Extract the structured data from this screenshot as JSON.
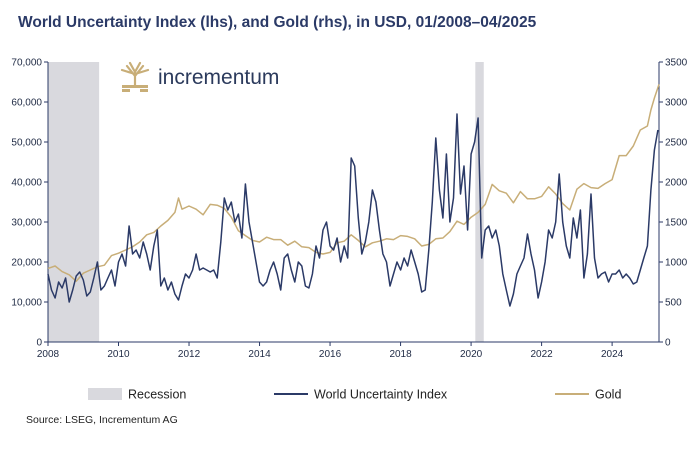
{
  "chart_data": {
    "type": "line",
    "title": "World Uncertainty Index (lhs), and Gold (rhs), in USD, 01/2008–04/2025",
    "x_range": [
      2008,
      2025.33
    ],
    "x_ticks": [
      "2008",
      "2010",
      "2012",
      "2014",
      "2016",
      "2018",
      "2020",
      "2022",
      "2024"
    ],
    "y_left": {
      "range": [
        0,
        70000
      ],
      "ticks": [
        "0",
        "10,000",
        "20,000",
        "30,000",
        "40,000",
        "50,000",
        "60,000",
        "70,000"
      ]
    },
    "y_right": {
      "range": [
        0,
        3500
      ],
      "ticks": [
        "0",
        "500",
        "1000",
        "1500",
        "2000",
        "2500",
        "3000",
        "3500"
      ]
    },
    "recessions": [
      {
        "start": 2008.0,
        "end": 2009.45
      },
      {
        "start": 2020.12,
        "end": 2020.36
      }
    ],
    "series": [
      {
        "name": "World Uncertainty Index",
        "axis": "left",
        "color": "#2b3a67",
        "points": [
          [
            2008.0,
            17000
          ],
          [
            2008.1,
            13000
          ],
          [
            2008.2,
            11000
          ],
          [
            2008.3,
            15000
          ],
          [
            2008.4,
            13500
          ],
          [
            2008.5,
            16000
          ],
          [
            2008.6,
            10000
          ],
          [
            2008.7,
            13000
          ],
          [
            2008.8,
            16500
          ],
          [
            2008.9,
            17500
          ],
          [
            2009.0,
            15500
          ],
          [
            2009.1,
            11500
          ],
          [
            2009.2,
            12500
          ],
          [
            2009.3,
            16000
          ],
          [
            2009.4,
            20000
          ],
          [
            2009.5,
            13000
          ],
          [
            2009.6,
            14000
          ],
          [
            2009.7,
            16000
          ],
          [
            2009.8,
            18000
          ],
          [
            2009.9,
            14000
          ],
          [
            2010.0,
            20000
          ],
          [
            2010.1,
            22000
          ],
          [
            2010.2,
            19000
          ],
          [
            2010.3,
            29000
          ],
          [
            2010.4,
            22000
          ],
          [
            2010.5,
            23000
          ],
          [
            2010.6,
            21000
          ],
          [
            2010.7,
            25000
          ],
          [
            2010.8,
            22000
          ],
          [
            2010.9,
            18000
          ],
          [
            2011.0,
            24000
          ],
          [
            2011.1,
            28000
          ],
          [
            2011.2,
            14000
          ],
          [
            2011.3,
            16000
          ],
          [
            2011.4,
            13000
          ],
          [
            2011.5,
            15000
          ],
          [
            2011.6,
            12000
          ],
          [
            2011.7,
            10500
          ],
          [
            2011.8,
            14000
          ],
          [
            2011.9,
            17000
          ],
          [
            2012.0,
            16000
          ],
          [
            2012.1,
            18000
          ],
          [
            2012.2,
            22000
          ],
          [
            2012.3,
            18000
          ],
          [
            2012.4,
            18500
          ],
          [
            2012.5,
            18000
          ],
          [
            2012.6,
            17500
          ],
          [
            2012.7,
            18000
          ],
          [
            2012.8,
            16000
          ],
          [
            2012.9,
            25000
          ],
          [
            2013.0,
            36000
          ],
          [
            2013.1,
            33000
          ],
          [
            2013.2,
            35000
          ],
          [
            2013.3,
            30000
          ],
          [
            2013.4,
            32000
          ],
          [
            2013.5,
            26000
          ],
          [
            2013.6,
            39500
          ],
          [
            2013.7,
            30000
          ],
          [
            2013.8,
            25000
          ],
          [
            2013.9,
            20000
          ],
          [
            2014.0,
            15000
          ],
          [
            2014.1,
            14000
          ],
          [
            2014.2,
            15000
          ],
          [
            2014.3,
            18000
          ],
          [
            2014.4,
            20000
          ],
          [
            2014.5,
            17000
          ],
          [
            2014.6,
            13000
          ],
          [
            2014.7,
            21000
          ],
          [
            2014.8,
            22000
          ],
          [
            2014.9,
            18000
          ],
          [
            2015.0,
            15000
          ],
          [
            2015.1,
            20000
          ],
          [
            2015.2,
            19000
          ],
          [
            2015.3,
            14000
          ],
          [
            2015.4,
            13500
          ],
          [
            2015.5,
            17000
          ],
          [
            2015.6,
            24000
          ],
          [
            2015.7,
            21000
          ],
          [
            2015.8,
            28000
          ],
          [
            2015.9,
            30000
          ],
          [
            2016.0,
            24000
          ],
          [
            2016.1,
            23000
          ],
          [
            2016.2,
            26000
          ],
          [
            2016.3,
            20000
          ],
          [
            2016.4,
            24000
          ],
          [
            2016.5,
            21000
          ],
          [
            2016.6,
            46000
          ],
          [
            2016.7,
            44000
          ],
          [
            2016.8,
            31000
          ],
          [
            2016.9,
            22000
          ],
          [
            2017.0,
            25000
          ],
          [
            2017.1,
            30000
          ],
          [
            2017.2,
            38000
          ],
          [
            2017.3,
            35000
          ],
          [
            2017.4,
            28000
          ],
          [
            2017.5,
            22000
          ],
          [
            2017.6,
            20000
          ],
          [
            2017.7,
            14000
          ],
          [
            2017.8,
            17000
          ],
          [
            2017.9,
            20000
          ],
          [
            2018.0,
            18000
          ],
          [
            2018.1,
            21000
          ],
          [
            2018.2,
            19000
          ],
          [
            2018.3,
            23000
          ],
          [
            2018.4,
            20000
          ],
          [
            2018.5,
            17000
          ],
          [
            2018.6,
            12500
          ],
          [
            2018.7,
            13000
          ],
          [
            2018.8,
            23000
          ],
          [
            2018.9,
            35000
          ],
          [
            2019.0,
            51000
          ],
          [
            2019.1,
            38000
          ],
          [
            2019.2,
            31000
          ],
          [
            2019.3,
            47000
          ],
          [
            2019.4,
            30000
          ],
          [
            2019.5,
            36000
          ],
          [
            2019.6,
            57000
          ],
          [
            2019.7,
            37000
          ],
          [
            2019.8,
            44000
          ],
          [
            2019.9,
            28000
          ],
          [
            2020.0,
            47000
          ],
          [
            2020.1,
            50000
          ],
          [
            2020.2,
            56000
          ],
          [
            2020.3,
            21000
          ],
          [
            2020.4,
            28000
          ],
          [
            2020.5,
            29000
          ],
          [
            2020.6,
            26000
          ],
          [
            2020.7,
            28000
          ],
          [
            2020.8,
            24000
          ],
          [
            2020.9,
            17000
          ],
          [
            2021.0,
            13000
          ],
          [
            2021.1,
            9000
          ],
          [
            2021.2,
            12000
          ],
          [
            2021.3,
            17000
          ],
          [
            2021.4,
            19000
          ],
          [
            2021.5,
            21000
          ],
          [
            2021.6,
            27000
          ],
          [
            2021.7,
            22000
          ],
          [
            2021.8,
            18000
          ],
          [
            2021.9,
            11000
          ],
          [
            2022.0,
            15000
          ],
          [
            2022.1,
            20000
          ],
          [
            2022.2,
            28000
          ],
          [
            2022.3,
            26000
          ],
          [
            2022.4,
            30000
          ],
          [
            2022.5,
            42000
          ],
          [
            2022.6,
            30000
          ],
          [
            2022.7,
            24000
          ],
          [
            2022.8,
            21000
          ],
          [
            2022.9,
            31000
          ],
          [
            2023.0,
            26000
          ],
          [
            2023.1,
            33000
          ],
          [
            2023.2,
            16000
          ],
          [
            2023.3,
            22000
          ],
          [
            2023.4,
            37000
          ],
          [
            2023.5,
            21000
          ],
          [
            2023.6,
            16000
          ],
          [
            2023.7,
            17000
          ],
          [
            2023.8,
            17500
          ],
          [
            2023.9,
            15000
          ],
          [
            2024.0,
            17000
          ],
          [
            2024.1,
            17000
          ],
          [
            2024.2,
            18000
          ],
          [
            2024.3,
            16000
          ],
          [
            2024.4,
            17000
          ],
          [
            2024.5,
            16000
          ],
          [
            2024.6,
            14500
          ],
          [
            2024.7,
            15000
          ],
          [
            2024.8,
            18000
          ],
          [
            2024.9,
            21000
          ],
          [
            2025.0,
            24000
          ],
          [
            2025.1,
            38000
          ],
          [
            2025.2,
            48000
          ],
          [
            2025.3,
            53000
          ]
        ]
      },
      {
        "name": "Gold",
        "axis": "right",
        "color": "#c8ae78",
        "points": [
          [
            2008.0,
            920
          ],
          [
            2008.2,
            950
          ],
          [
            2008.4,
            880
          ],
          [
            2008.6,
            840
          ],
          [
            2008.8,
            760
          ],
          [
            2009.0,
            860
          ],
          [
            2009.2,
            900
          ],
          [
            2009.4,
            940
          ],
          [
            2009.6,
            960
          ],
          [
            2009.8,
            1080
          ],
          [
            2010.0,
            1110
          ],
          [
            2010.2,
            1150
          ],
          [
            2010.4,
            1190
          ],
          [
            2010.6,
            1250
          ],
          [
            2010.8,
            1340
          ],
          [
            2011.0,
            1370
          ],
          [
            2011.2,
            1450
          ],
          [
            2011.4,
            1520
          ],
          [
            2011.6,
            1620
          ],
          [
            2011.7,
            1800
          ],
          [
            2011.8,
            1660
          ],
          [
            2012.0,
            1700
          ],
          [
            2012.2,
            1660
          ],
          [
            2012.4,
            1590
          ],
          [
            2012.6,
            1720
          ],
          [
            2012.8,
            1710
          ],
          [
            2013.0,
            1670
          ],
          [
            2013.2,
            1560
          ],
          [
            2013.4,
            1390
          ],
          [
            2013.6,
            1330
          ],
          [
            2013.8,
            1270
          ],
          [
            2014.0,
            1250
          ],
          [
            2014.2,
            1310
          ],
          [
            2014.4,
            1280
          ],
          [
            2014.6,
            1280
          ],
          [
            2014.8,
            1210
          ],
          [
            2015.0,
            1260
          ],
          [
            2015.2,
            1190
          ],
          [
            2015.4,
            1180
          ],
          [
            2015.6,
            1120
          ],
          [
            2015.8,
            1100
          ],
          [
            2016.0,
            1120
          ],
          [
            2016.2,
            1240
          ],
          [
            2016.4,
            1260
          ],
          [
            2016.6,
            1340
          ],
          [
            2016.8,
            1270
          ],
          [
            2017.0,
            1190
          ],
          [
            2017.2,
            1240
          ],
          [
            2017.4,
            1260
          ],
          [
            2017.6,
            1290
          ],
          [
            2017.8,
            1280
          ],
          [
            2018.0,
            1330
          ],
          [
            2018.2,
            1320
          ],
          [
            2018.4,
            1290
          ],
          [
            2018.6,
            1200
          ],
          [
            2018.8,
            1220
          ],
          [
            2019.0,
            1290
          ],
          [
            2019.2,
            1300
          ],
          [
            2019.4,
            1380
          ],
          [
            2019.6,
            1510
          ],
          [
            2019.8,
            1470
          ],
          [
            2020.0,
            1560
          ],
          [
            2020.2,
            1620
          ],
          [
            2020.4,
            1720
          ],
          [
            2020.6,
            1970
          ],
          [
            2020.8,
            1890
          ],
          [
            2021.0,
            1860
          ],
          [
            2021.2,
            1740
          ],
          [
            2021.4,
            1880
          ],
          [
            2021.6,
            1790
          ],
          [
            2021.8,
            1790
          ],
          [
            2022.0,
            1820
          ],
          [
            2022.2,
            1940
          ],
          [
            2022.4,
            1850
          ],
          [
            2022.6,
            1730
          ],
          [
            2022.8,
            1650
          ],
          [
            2023.0,
            1910
          ],
          [
            2023.2,
            1980
          ],
          [
            2023.4,
            1930
          ],
          [
            2023.6,
            1920
          ],
          [
            2023.8,
            1980
          ],
          [
            2024.0,
            2030
          ],
          [
            2024.2,
            2330
          ],
          [
            2024.4,
            2330
          ],
          [
            2024.6,
            2450
          ],
          [
            2024.8,
            2650
          ],
          [
            2025.0,
            2700
          ],
          [
            2025.1,
            2900
          ],
          [
            2025.2,
            3050
          ],
          [
            2025.33,
            3220
          ]
        ]
      }
    ],
    "legend": [
      {
        "label": "Recession",
        "kind": "box",
        "color": "#d9d9de"
      },
      {
        "label": "World Uncertainty Index",
        "kind": "line",
        "color": "#2b3a67"
      },
      {
        "label": "Gold",
        "kind": "line",
        "color": "#c8ae78"
      }
    ],
    "legend_position": "bottom"
  },
  "logo": {
    "text": "incrementum"
  },
  "source": "Source: LSEG, Incrementum AG",
  "colors": {
    "title": "#2b3a67",
    "axis": "#2b3a67",
    "text": "#1f2a44",
    "recession": "#d9d9de",
    "logo_gold": "#c8ae78",
    "logo_text": "#2b3a5c"
  }
}
